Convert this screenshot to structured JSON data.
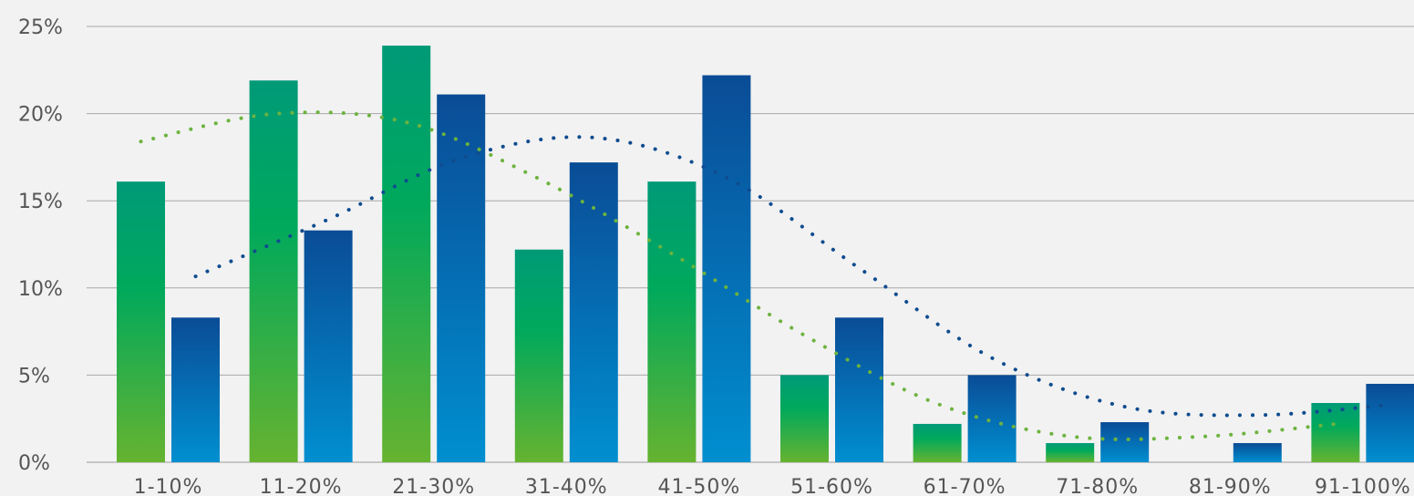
{
  "chart_data": {
    "type": "bar",
    "title": "",
    "xlabel": "",
    "ylabel": "",
    "categories": [
      "1-10%",
      "11-20%",
      "21-30%",
      "31-40%",
      "41-50%",
      "51-60%",
      "61-70%",
      "71-80%",
      "81-90%",
      "91-100%"
    ],
    "y_ticks": [
      "0%",
      "5%",
      "10%",
      "15%",
      "20%",
      "25%"
    ],
    "ylim": [
      0,
      25
    ],
    "grid": true,
    "legend": "none",
    "series": [
      {
        "values": [
          16.1,
          21.9,
          23.9,
          12.2,
          16.1,
          5.0,
          2.2,
          1.1,
          0,
          3.4
        ],
        "color_top": "#009a78",
        "color_mid": "#00a95c",
        "color_bottom": "#66b330",
        "trendline_color": "#6db33f"
      },
      {
        "values": [
          8.3,
          13.3,
          21.1,
          17.2,
          22.2,
          8.3,
          5.0,
          2.3,
          1.1,
          4.5
        ],
        "color_top": "#0a4c96",
        "color_bottom": "#008fd0",
        "trendline_color": "#0f4c8f"
      }
    ]
  }
}
